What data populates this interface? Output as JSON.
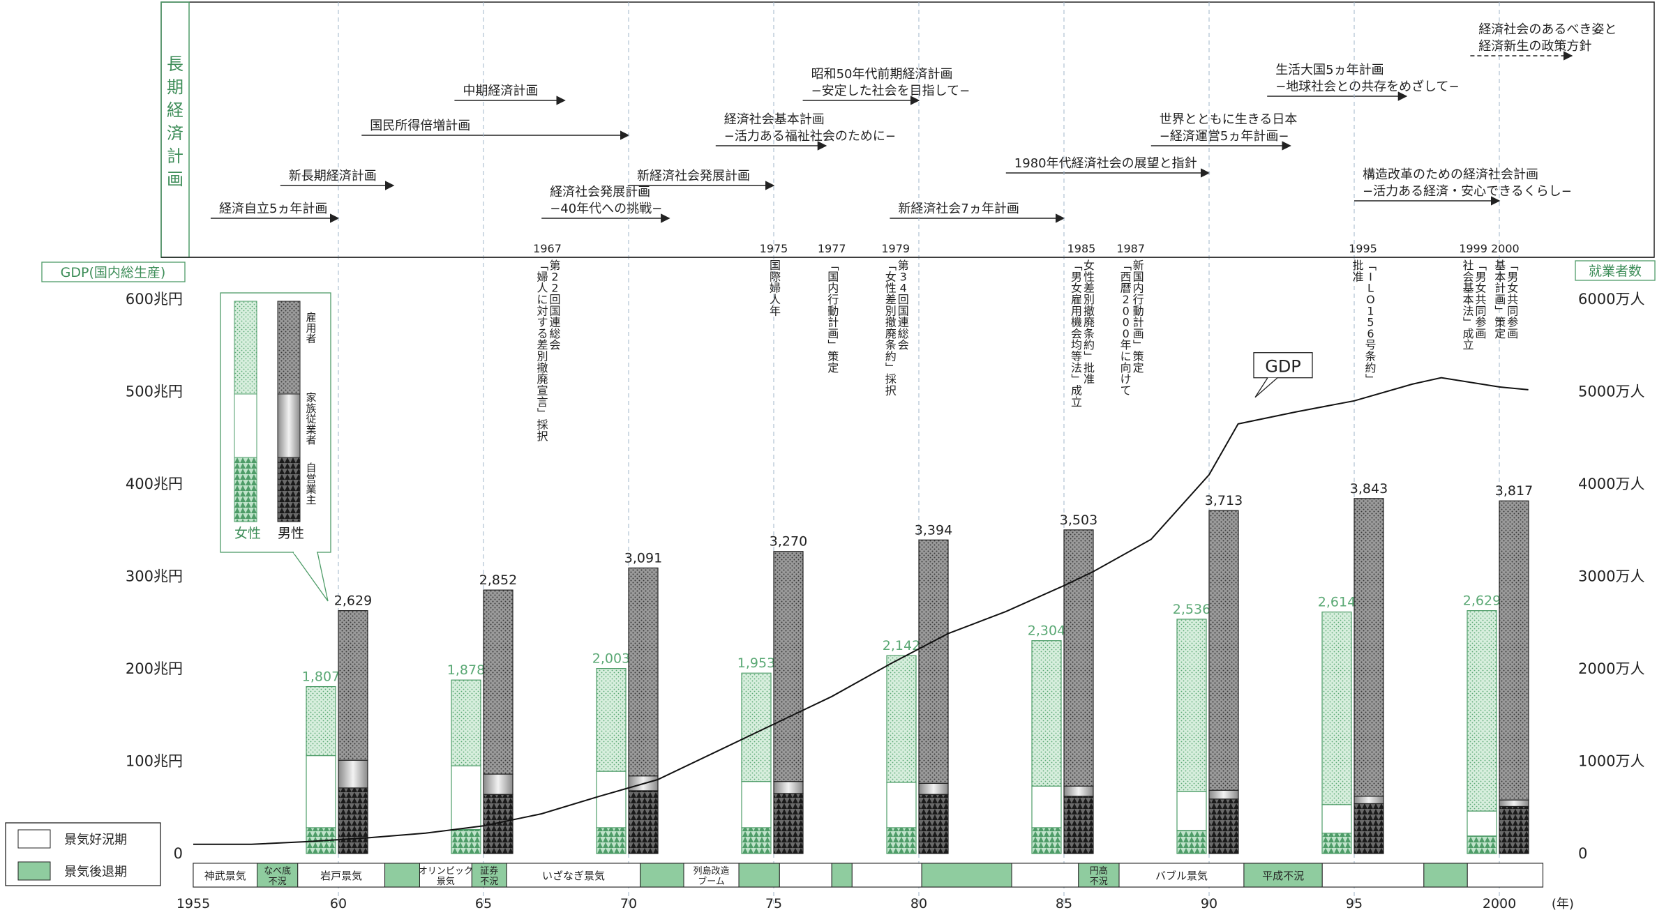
{
  "plan_panel": {
    "title_chars": [
      "長",
      "期",
      "経",
      "済",
      "計",
      "画"
    ],
    "plans": [
      {
        "label": [
          "経済自立5ヵ年計画"
        ],
        "start": 1955.6,
        "end": 1960.0
      },
      {
        "label": [
          "新長期経済計画"
        ],
        "start": 1958.0,
        "end": 1961.9
      },
      {
        "label": [
          "国民所得倍増計画"
        ],
        "start": 1960.8,
        "end": 1970.0
      },
      {
        "label": [
          "中期経済計画"
        ],
        "start": 1964.0,
        "end": 1967.8
      },
      {
        "label": [
          "経済社会発展計画",
          "−40年代への挑戦−"
        ],
        "start": 1967.0,
        "end": 1971.4
      },
      {
        "label": [
          "新経済社会発展計画"
        ],
        "start": 1970.0,
        "end": 1975.0
      },
      {
        "label": [
          "経済社会基本計画",
          "−活力ある福祉社会のために−"
        ],
        "start": 1973.0,
        "end": 1976.8
      },
      {
        "label": [
          "昭和50年代前期経済計画",
          "−安定した社会を目指して−"
        ],
        "start": 1976.0,
        "end": 1980.0
      },
      {
        "label": [
          "新経済社会7ヵ年計画"
        ],
        "start": 1979.0,
        "end": 1985.0
      },
      {
        "label": [
          "1980年代経済社会の展望と指針"
        ],
        "start": 1983.0,
        "end": 1990.0
      },
      {
        "label": [
          "世界とともに生きる日本",
          "−経済運営5ヵ年計画−"
        ],
        "start": 1988.0,
        "end": 1992.8
      },
      {
        "label": [
          "生活大国5ヵ年計画",
          "−地球社会との共存をめざして−"
        ],
        "start": 1992.0,
        "end": 1996.8
      },
      {
        "label": [
          "構造改革のための経済社会計画",
          "−活力ある経済・安心できるくらし−"
        ],
        "start": 1995.0,
        "end": 2000.0
      },
      {
        "label": [
          "経済社会のあるべき姿と",
          "経済新生の政策方針"
        ],
        "start": 1999.0,
        "end": 2002.5,
        "dashed": true
      }
    ]
  },
  "events": [
    {
      "year_label": "1967",
      "text": [
        "第22回国連総会",
        "「婦人に対する差別撤廃宣言」採択"
      ]
    },
    {
      "year_label": "1975",
      "text": [
        "国際婦人年"
      ]
    },
    {
      "year_label": "1977",
      "text": [
        "「国内行動計画」策定"
      ]
    },
    {
      "year_label": "1979",
      "text": [
        "第34回国連総会",
        "「女性差別撤廃条約」採択"
      ]
    },
    {
      "year_label": "1985",
      "text": [
        "女性差別撤廃条約」批准",
        "「男女雇用機会均等法」成立"
      ]
    },
    {
      "year_label": "1987",
      "text": [
        "新国内行動計画」策定",
        "「西暦2000年に向けて"
      ]
    },
    {
      "year_label": "1995",
      "text": [
        "「ILO156号条約」",
        "批准"
      ]
    },
    {
      "year_label": "1999",
      "text": [
        "「男女共同参画",
        "社会基本法」成立"
      ]
    },
    {
      "year_label": "2000",
      "text": [
        "「男女共同参画",
        "基本計画」策定"
      ]
    }
  ],
  "axes": {
    "left_title": "GDP(国内総生産)",
    "right_title": "就業者数",
    "left_ticks": [
      "0",
      "100兆円",
      "200兆円",
      "300兆円",
      "400兆円",
      "500兆円",
      "600兆円"
    ],
    "right_ticks": [
      "0",
      "1000万人",
      "2000万人",
      "3000万人",
      "4000万人",
      "5000万人",
      "6000万人"
    ],
    "x_ticks": [
      "1955",
      "60",
      "65",
      "70",
      "75",
      "80",
      "85",
      "90",
      "95",
      "2000"
    ],
    "x_unit": "(年)"
  },
  "legend": {
    "women": "女性",
    "men": "男性",
    "segments": [
      "雇用者",
      "家族従業者",
      "自営業主"
    ]
  },
  "gdp_label": "GDP",
  "business_legend": {
    "boom": "景気好況期",
    "recession": "景気後退期"
  },
  "business_cycles": [
    {
      "label": [
        "神武景気"
      ],
      "start": 1955.0,
      "end": 1957.2,
      "type": "boom"
    },
    {
      "label": [
        "なべ底",
        "不況"
      ],
      "start": 1957.2,
      "end": 1958.6,
      "type": "recession"
    },
    {
      "label": [
        "岩戸景気"
      ],
      "start": 1958.6,
      "end": 1961.6,
      "type": "boom"
    },
    {
      "label": [],
      "start": 1961.6,
      "end": 1962.8,
      "type": "recession"
    },
    {
      "label": [
        "オリンピック",
        "景気"
      ],
      "start": 1962.8,
      "end": 1964.6,
      "type": "boom"
    },
    {
      "label": [
        "証券",
        "不況"
      ],
      "start": 1964.6,
      "end": 1965.8,
      "type": "recession"
    },
    {
      "label": [
        "いざなぎ景気"
      ],
      "start": 1965.8,
      "end": 1970.4,
      "type": "boom"
    },
    {
      "label": [],
      "start": 1970.4,
      "end": 1971.9,
      "type": "recession"
    },
    {
      "label": [
        "列島改造",
        "ブーム"
      ],
      "start": 1971.9,
      "end": 1973.8,
      "type": "boom"
    },
    {
      "label": [],
      "start": 1973.8,
      "end": 1975.2,
      "type": "recession"
    },
    {
      "label": [],
      "start": 1975.2,
      "end": 1977.0,
      "type": "boom"
    },
    {
      "label": [],
      "start": 1977.0,
      "end": 1977.7,
      "type": "recession"
    },
    {
      "label": [],
      "start": 1977.7,
      "end": 1980.1,
      "type": "boom"
    },
    {
      "label": [],
      "start": 1980.1,
      "end": 1983.2,
      "type": "recession"
    },
    {
      "label": [],
      "start": 1983.2,
      "end": 1985.5,
      "type": "boom"
    },
    {
      "label": [
        "円高",
        "不況"
      ],
      "start": 1985.5,
      "end": 1986.9,
      "type": "recession"
    },
    {
      "label": [
        "バブル景気"
      ],
      "start": 1986.9,
      "end": 1991.2,
      "type": "boom"
    },
    {
      "label": [
        "平成不況"
      ],
      "start": 1991.2,
      "end": 1993.9,
      "type": "recession"
    },
    {
      "label": [],
      "start": 1993.9,
      "end": 1997.4,
      "type": "boom"
    },
    {
      "label": [],
      "start": 1997.4,
      "end": 1998.9,
      "type": "recession"
    },
    {
      "label": [],
      "start": 1998.9,
      "end": 2001.5,
      "type": "boom"
    }
  ],
  "chart_data": {
    "type": "bar",
    "categories": [
      "1960",
      "1965",
      "1970",
      "1975",
      "1980",
      "1985",
      "1990",
      "1995",
      "2000"
    ],
    "x": [
      1960,
      1965,
      1970,
      1975,
      1980,
      1985,
      1990,
      1995,
      2000
    ],
    "series": [
      {
        "name": "女性",
        "values": [
          1807,
          1878,
          2003,
          1953,
          2142,
          2304,
          2536,
          2614,
          2629
        ],
        "segments": {
          "自営業主": [
            280,
            260,
            280,
            280,
            280,
            280,
            250,
            220,
            190
          ],
          "家族従業者": [
            780,
            690,
            610,
            500,
            490,
            450,
            420,
            310,
            270
          ],
          "雇用者": [
            747,
            928,
            1113,
            1173,
            1372,
            1574,
            1866,
            2084,
            2169
          ]
        }
      },
      {
        "name": "男性",
        "values": [
          2629,
          2852,
          3091,
          3270,
          3394,
          3503,
          3713,
          3843,
          3817
        ],
        "segments": {
          "自営業主": [
            710,
            640,
            680,
            650,
            640,
            620,
            590,
            540,
            510
          ],
          "家族従業者": [
            300,
            220,
            160,
            130,
            120,
            110,
            95,
            80,
            70
          ],
          "雇用者": [
            1619,
            1992,
            2251,
            2490,
            2634,
            2773,
            3028,
            3223,
            3237
          ]
        }
      }
    ],
    "gdp": {
      "name": "GDP",
      "unit": "兆円",
      "x": [
        1955,
        1957,
        1959,
        1961,
        1963,
        1965,
        1967,
        1969,
        1971,
        1973,
        1975,
        1977,
        1979,
        1981,
        1983,
        1985,
        1986,
        1988,
        1990,
        1991,
        1993,
        1995,
        1997,
        1998,
        2000,
        2001
      ],
      "y": [
        10,
        10,
        13,
        17,
        22,
        30,
        43,
        62,
        80,
        110,
        140,
        170,
        205,
        238,
        262,
        290,
        305,
        340,
        410,
        465,
        478,
        490,
        508,
        515,
        505,
        502
      ]
    },
    "ylim_left": [
      0,
      600
    ],
    "ylim_right": [
      0,
      6000
    ]
  }
}
